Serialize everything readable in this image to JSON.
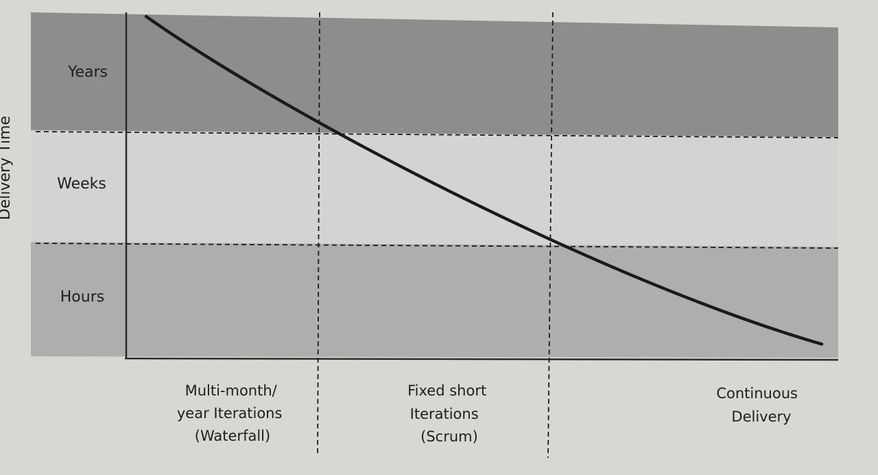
{
  "diagram": {
    "y_axis_label": "Delivery Time",
    "bands": [
      {
        "id": "years",
        "label": "Years",
        "color": "#8f8d8c"
      },
      {
        "id": "weeks",
        "label": "Weeks",
        "color": "#d5d3d1"
      },
      {
        "id": "hours",
        "label": "Hours",
        "color": "#b0aeac"
      }
    ],
    "columns": [
      {
        "id": "waterfall",
        "lines": [
          "Multi-month/",
          "year Iterations",
          "(Waterfall)"
        ]
      },
      {
        "id": "scrum",
        "lines": [
          "Fixed short",
          "Iterations",
          "(Scrum)"
        ]
      },
      {
        "id": "continuous",
        "lines": [
          "Continuous",
          "Delivery"
        ]
      }
    ],
    "colors": {
      "curve": "#1a1a1a",
      "axis": "#2a2a2a",
      "page": "#d9d7d4"
    }
  }
}
